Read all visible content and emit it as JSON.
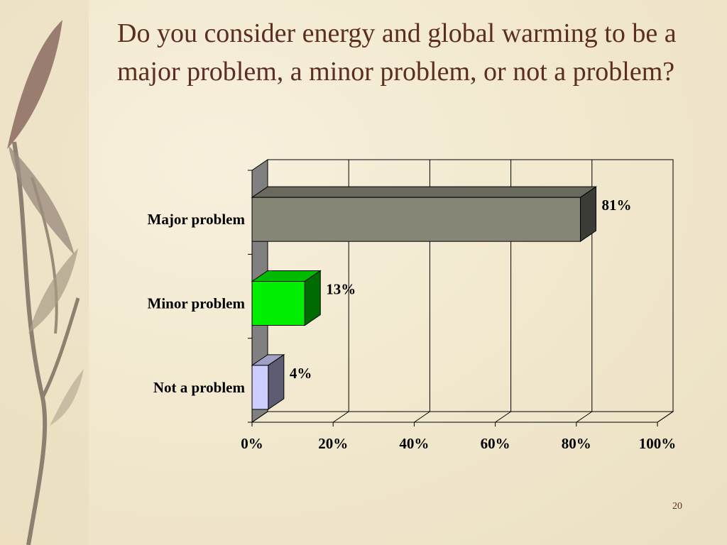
{
  "slide": {
    "title": "Do you consider energy and global warming to be a major problem, a minor problem, or not a problem?",
    "page_number": "20",
    "decoration": "leaf-branch"
  },
  "chart_data": {
    "type": "bar",
    "orientation": "horizontal",
    "style": "3d",
    "title": "",
    "xlabel": "",
    "ylabel": "",
    "categories": [
      "Major problem",
      "Minor problem",
      "Not a problem"
    ],
    "values": [
      81,
      13,
      4
    ],
    "value_labels": [
      "81%",
      "13%",
      "4%"
    ],
    "colors": [
      "#868677",
      "#00ee00",
      "#cdcdff"
    ],
    "xlim": [
      0,
      100
    ],
    "x_ticks": [
      0,
      20,
      40,
      60,
      80,
      100
    ],
    "x_tick_labels": [
      "0%",
      "20%",
      "40%",
      "60%",
      "80%",
      "100%"
    ],
    "grid": true,
    "legend": "none"
  }
}
